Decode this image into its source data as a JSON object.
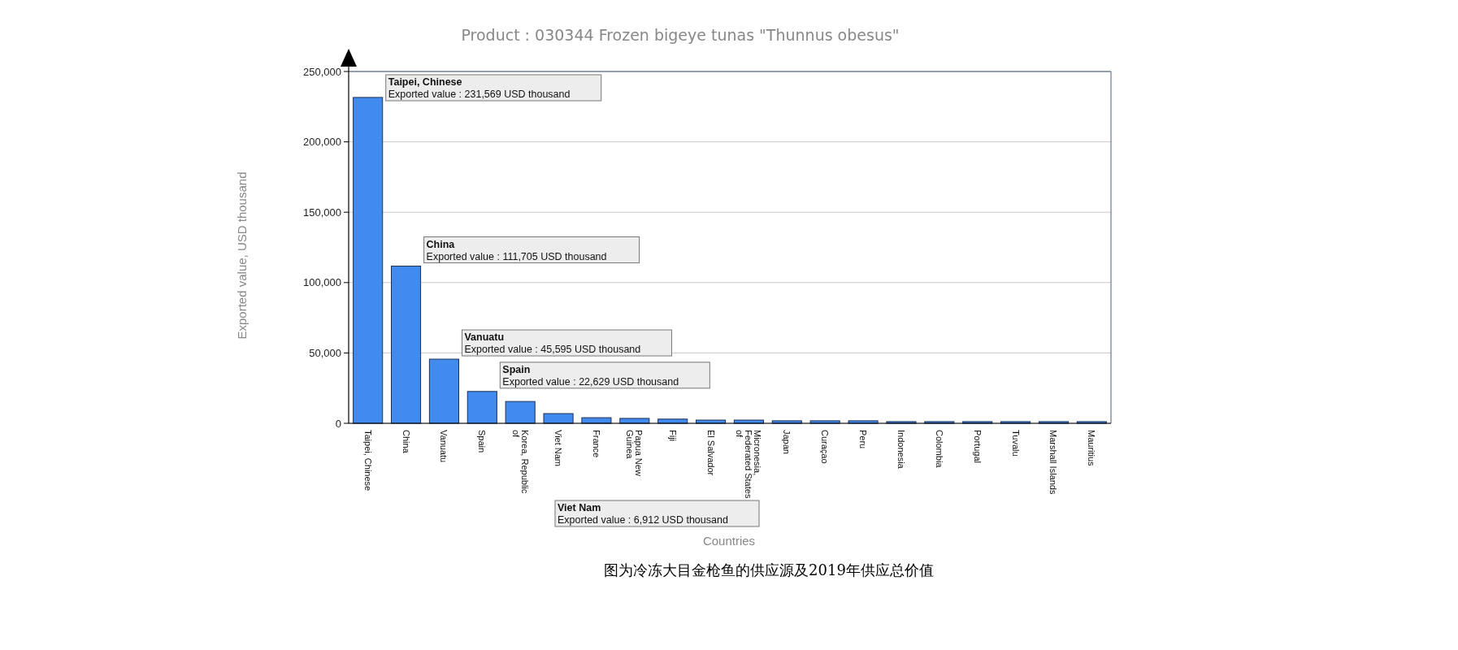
{
  "chart_data": {
    "type": "bar",
    "title": "Product : 030344 Frozen bigeye tunas \"Thunnus obesus\"",
    "xlabel": "Countries",
    "ylabel": "Exported value, USD thousand",
    "categories": [
      "Taipei, Chinese",
      "China",
      "Vanuatu",
      "Spain",
      "Korea, Republic of",
      "Viet Nam",
      "France",
      "Papua New Guinea",
      "Fiji",
      "El Salvador",
      "Micronesia, Federated States of",
      "Japan",
      "Curaçao",
      "Peru",
      "Indonesia",
      "Colombia",
      "Portugal",
      "Tuvalu",
      "Marshall Islands",
      "Mauritius"
    ],
    "values": [
      231569,
      111705,
      45595,
      22629,
      15500,
      6912,
      4000,
      3500,
      3000,
      2300,
      2300,
      1800,
      1800,
      1800,
      1200,
      1200,
      1200,
      1200,
      1200,
      1200
    ],
    "color": "#418bef",
    "ylim": [
      0,
      250000
    ],
    "yticks": [
      {
        "value": 0,
        "label": "0"
      },
      {
        "value": 50000,
        "label": "50,000"
      },
      {
        "value": 100000,
        "label": "100,000"
      },
      {
        "value": 150000,
        "label": "150,000"
      },
      {
        "value": 200000,
        "label": "200,000"
      },
      {
        "value": 250000,
        "label": "250,000"
      }
    ],
    "grid": "y",
    "annotations": [
      {
        "text": "Taipei, Chinese\nExported value : 231,569 USD thousand",
        "x": "Taipei, Chinese",
        "y": 231569
      },
      {
        "text": "China\nExported value : 111,705 USD thousand",
        "x": "China",
        "y": 111705
      },
      {
        "text": "Vanuatu\nExported value : 45,595 USD thousand",
        "x": "Vanuatu",
        "y": 45595
      },
      {
        "text": "Spain\nExported value : 22,629 USD thousand",
        "x": "Spain",
        "y": 22629
      },
      "Viet Nam\nExported value : 6,912 USD thousand",
      "图为冷冻大目金枪鱼的供应源及2019年供应总价值"
    ]
  }
}
